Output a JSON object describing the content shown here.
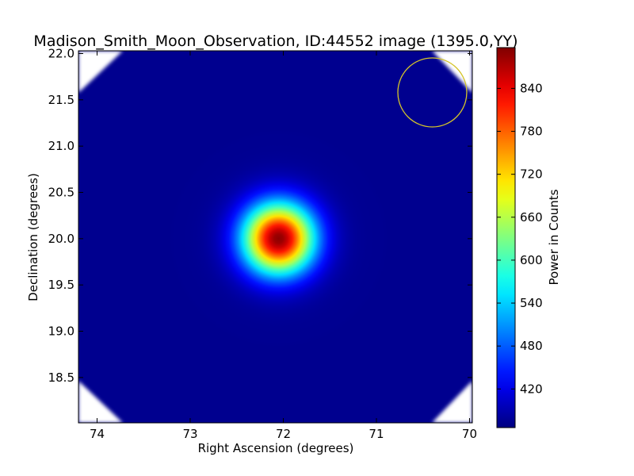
{
  "chart_data": {
    "type": "heatmap",
    "title": "Madison_Smith_Moon_Observation, ID:44552 image (1395.0,YY)",
    "xlabel": "Right Ascension (degrees)",
    "ylabel": "Declination (degrees)",
    "xlim": [
      74.2,
      69.97
    ],
    "ylim": [
      18.01,
      22.03
    ],
    "x_ticks": [
      {
        "value": 74,
        "label": "74"
      },
      {
        "value": 73,
        "label": "73"
      },
      {
        "value": 72,
        "label": "72"
      },
      {
        "value": 71,
        "label": "71"
      },
      {
        "value": 70,
        "label": "70"
      }
    ],
    "y_ticks": [
      {
        "value": 18.5,
        "label": "18.5"
      },
      {
        "value": 19.0,
        "label": "19.0"
      },
      {
        "value": 19.5,
        "label": "19.5"
      },
      {
        "value": 20.0,
        "label": "20.0"
      },
      {
        "value": 20.5,
        "label": "20.5"
      },
      {
        "value": 21.0,
        "label": "21.0"
      },
      {
        "value": 21.5,
        "label": "21.5"
      },
      {
        "value": 22.0,
        "label": "22.0"
      }
    ],
    "colorbar": {
      "label": "Power in Counts",
      "colormap": "jet",
      "range": [
        366,
        897
      ],
      "ticks": [
        {
          "value": 420,
          "label": "420"
        },
        {
          "value": 480,
          "label": "480"
        },
        {
          "value": 540,
          "label": "540"
        },
        {
          "value": 600,
          "label": "600"
        },
        {
          "value": 660,
          "label": "660"
        },
        {
          "value": 720,
          "label": "720"
        },
        {
          "value": 780,
          "label": "780"
        },
        {
          "value": 840,
          "label": "840"
        }
      ]
    },
    "source": {
      "ra": 72.05,
      "dec": 20.0,
      "peak": 890,
      "background": 375,
      "width_deg": 0.45
    },
    "beam_circle": {
      "ra": 70.4,
      "dec": 21.58,
      "radius_deg": 0.37,
      "color": "#d4c42a"
    },
    "corner_mask": "diagonal white corners (data cut-off) on all four corners"
  }
}
